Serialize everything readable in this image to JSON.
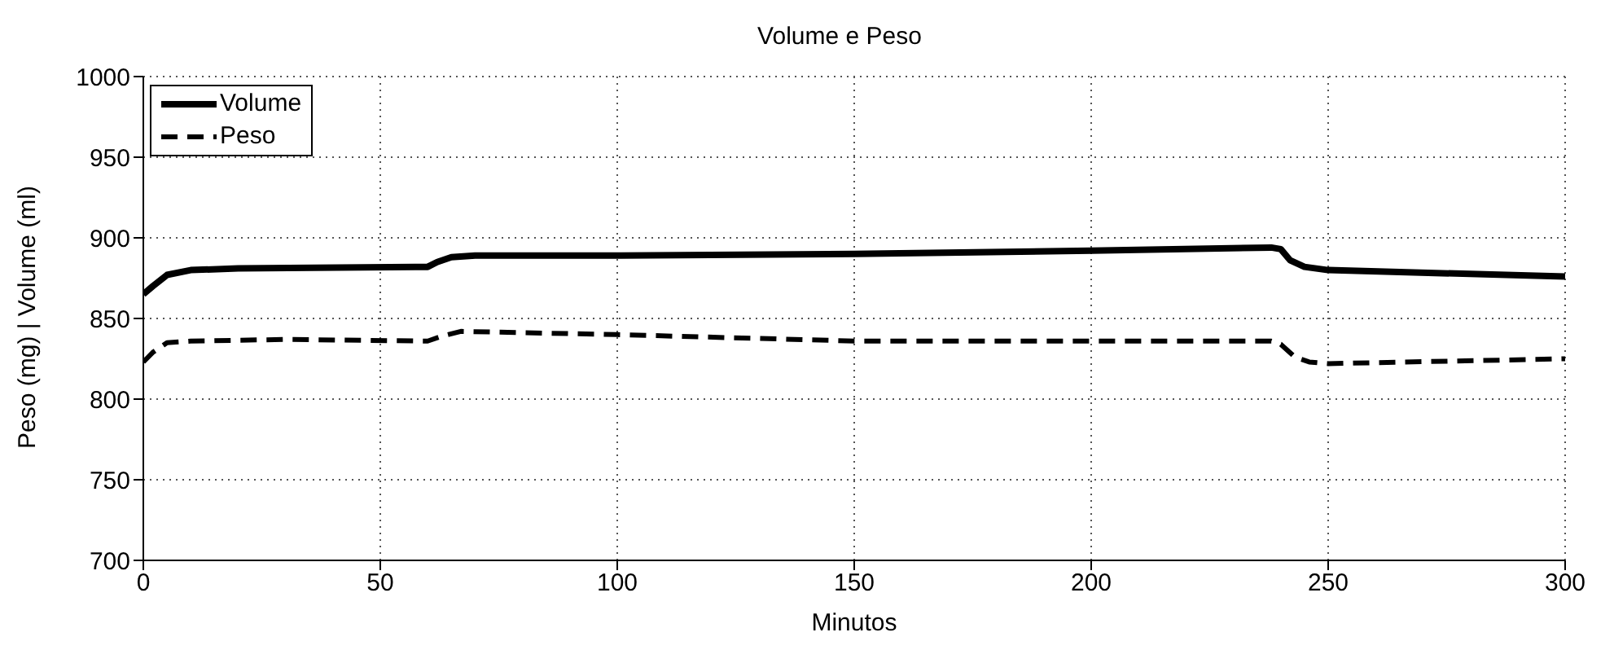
{
  "chart_data": {
    "type": "line",
    "title": "Volume e Peso",
    "xlabel": "Minutos",
    "ylabel": "Peso (mg) | Volume (ml)",
    "xlim": [
      0,
      300
    ],
    "xticks": [
      0,
      50,
      100,
      150,
      200,
      250,
      300
    ],
    "ylim": [
      700,
      1000
    ],
    "yticks": [
      700,
      750,
      800,
      850,
      900,
      950,
      1000
    ],
    "grid": true,
    "legend": "top left",
    "marker": "none",
    "series": [
      {
        "name": "Volume",
        "color": "#000000",
        "line_style": "solid",
        "x": [
          0,
          2,
          5,
          10,
          20,
          60,
          62,
          65,
          70,
          100,
          150,
          200,
          238,
          240,
          242,
          245,
          250,
          300
        ],
        "values": [
          865,
          870,
          877,
          880,
          881,
          882,
          885,
          888,
          889,
          889,
          890,
          892,
          894,
          893,
          886,
          882,
          880,
          876
        ]
      },
      {
        "name": "Peso",
        "color": "#000000",
        "line_style": "dashed",
        "x": [
          0,
          2,
          5,
          10,
          30,
          60,
          63,
          67,
          100,
          150,
          238,
          240,
          243,
          246,
          250,
          300
        ],
        "values": [
          823,
          829,
          835,
          836,
          837,
          836,
          839,
          842,
          840,
          836,
          836,
          834,
          826,
          823,
          822,
          825
        ]
      }
    ]
  }
}
